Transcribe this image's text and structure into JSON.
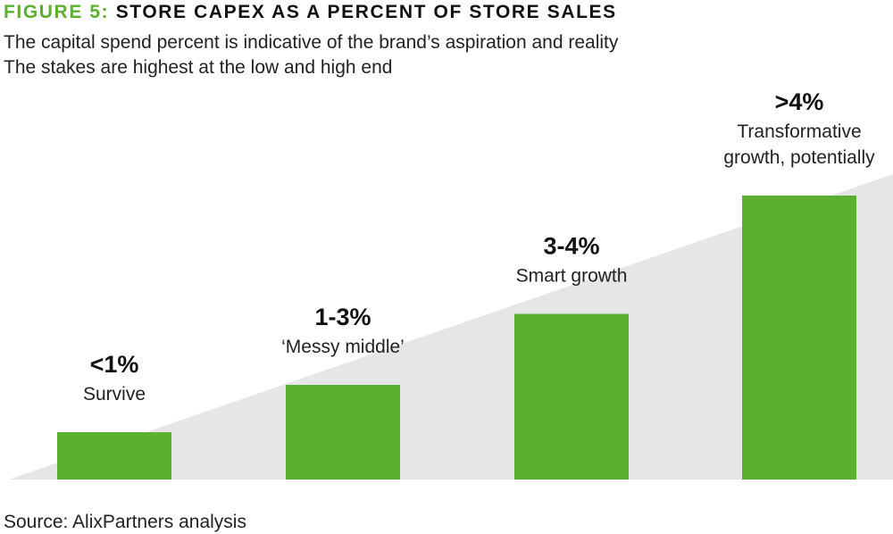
{
  "header": {
    "figure_label": "FIGURE 5:",
    "title": "STORE CAPEX AS A PERCENT OF STORE SALES",
    "subtitle_lines": [
      "The capital spend percent is indicative of the brand’s aspiration and reality",
      "The stakes are highest at the low and high end"
    ]
  },
  "footer": {
    "source": "Source: AlixPartners analysis"
  },
  "colors": {
    "accent": "#5cb030",
    "bar": "#5cb030",
    "wedge": "#e6e6e6",
    "text": "#1a1a1a"
  },
  "chart_data": {
    "type": "bar",
    "title": "STORE CAPEX AS A PERCENT OF STORE SALES",
    "categories": [
      "<1%",
      "1-3%",
      "3-4%",
      ">4%"
    ],
    "category_descriptions": [
      "Survive",
      "‘Messy middle’",
      "Smart growth",
      "Transformative growth, potentially"
    ],
    "description_lines": [
      [
        "Survive"
      ],
      [
        "‘Messy middle’"
      ],
      [
        "Smart growth"
      ],
      [
        "Transformative",
        "growth, potentially"
      ]
    ],
    "values": [
      1,
      2,
      3.5,
      6
    ],
    "value_note": "relative bar heights; chart has no value axis",
    "ylim": [
      0,
      6
    ],
    "axes_visible": false,
    "grid": false,
    "background": "rising grey wedge"
  }
}
